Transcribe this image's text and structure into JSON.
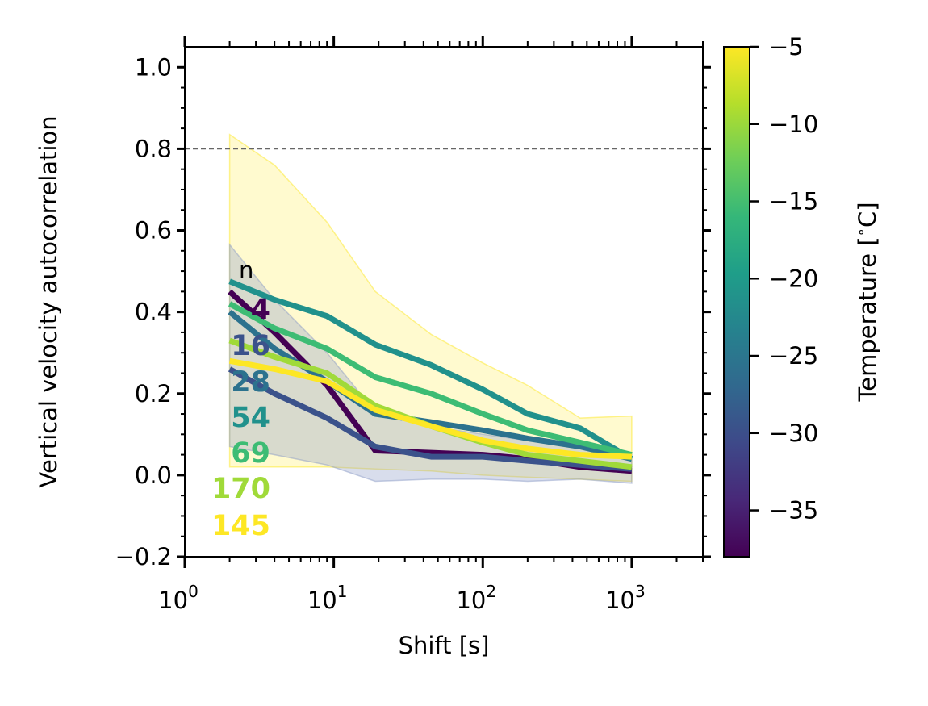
{
  "chart_data": {
    "type": "line",
    "xlabel": "Shift [s]",
    "ylabel": "Vertical velocity autocorrelation",
    "x_scale": "log",
    "xlim": [
      1,
      3000
    ],
    "ylim": [
      -0.2,
      1.05
    ],
    "x_ticks": [
      1,
      10,
      100,
      1000
    ],
    "x_tick_labels": [
      {
        "base": "10",
        "exp": "0"
      },
      {
        "base": "10",
        "exp": "1"
      },
      {
        "base": "10",
        "exp": "2"
      },
      {
        "base": "10",
        "exp": "3"
      }
    ],
    "y_ticks": [
      -0.2,
      0.0,
      0.2,
      0.4,
      0.6,
      0.8,
      1.0
    ],
    "y_tick_labels": [
      "−0.2",
      "0.0",
      "0.2",
      "0.4",
      "0.6",
      "0.8",
      "1.0"
    ],
    "reference_line": {
      "y": 0.8,
      "style": "dashed",
      "color": "#666666"
    },
    "grid": false,
    "count_header": "n",
    "series": [
      {
        "count": "4",
        "color": "#440154",
        "x": [
          2,
          4,
          9,
          19,
          45,
          100,
          200,
          450,
          1000
        ],
        "y": [
          0.45,
          0.35,
          0.22,
          0.06,
          0.055,
          0.05,
          0.04,
          0.02,
          0.01
        ]
      },
      {
        "count": "16",
        "color": "#3b528b",
        "x": [
          2,
          4,
          9,
          19,
          45,
          100,
          200,
          450,
          1000
        ],
        "y": [
          0.26,
          0.2,
          0.14,
          0.07,
          0.045,
          0.045,
          0.035,
          0.025,
          0.015
        ]
      },
      {
        "count": "28",
        "color": "#2c728e",
        "x": [
          2,
          4,
          9,
          19,
          45,
          100,
          200,
          450,
          1000
        ],
        "y": [
          0.4,
          0.31,
          0.23,
          0.15,
          0.13,
          0.11,
          0.09,
          0.07,
          0.04
        ]
      },
      {
        "count": "54",
        "color": "#21918c",
        "x": [
          2,
          4,
          9,
          19,
          45,
          100,
          200,
          450,
          1000
        ],
        "y": [
          0.475,
          0.43,
          0.39,
          0.32,
          0.27,
          0.21,
          0.15,
          0.115,
          0.04
        ]
      },
      {
        "count": "69",
        "color": "#3dbc74",
        "x": [
          2,
          4,
          9,
          19,
          45,
          100,
          200,
          450,
          1000
        ],
        "y": [
          0.42,
          0.36,
          0.31,
          0.24,
          0.2,
          0.15,
          0.11,
          0.08,
          0.05
        ]
      },
      {
        "count": "170",
        "color": "#a0da39",
        "x": [
          2,
          4,
          9,
          19,
          45,
          100,
          200,
          450,
          1000
        ],
        "y": [
          0.33,
          0.29,
          0.25,
          0.17,
          0.12,
          0.08,
          0.05,
          0.035,
          0.02
        ]
      },
      {
        "count": "145",
        "color": "#fde725",
        "x": [
          2,
          4,
          9,
          19,
          45,
          100,
          200,
          450,
          1000
        ],
        "y": [
          0.28,
          0.26,
          0.23,
          0.16,
          0.12,
          0.085,
          0.065,
          0.05,
          0.045
        ]
      }
    ],
    "bands": [
      {
        "color": "#fde725",
        "opacity": 0.22,
        "x": [
          2,
          4,
          9,
          19,
          45,
          100,
          200,
          450,
          1000
        ],
        "upper": [
          0.835,
          0.76,
          0.62,
          0.45,
          0.345,
          0.275,
          0.22,
          0.14,
          0.145
        ],
        "lower": [
          0.02,
          0.02,
          0.02,
          0.015,
          0.01,
          0.0,
          -0.005,
          -0.01,
          -0.015
        ]
      },
      {
        "color": "#8e9ec8",
        "opacity": 0.35,
        "x": [
          2,
          4,
          9,
          19,
          45,
          100,
          200,
          450,
          1000
        ],
        "upper": [
          0.565,
          0.43,
          0.3,
          0.155,
          0.12,
          0.1,
          0.085,
          0.065,
          0.05
        ],
        "lower": [
          0.07,
          0.05,
          0.025,
          -0.015,
          -0.01,
          -0.01,
          -0.015,
          -0.01,
          -0.02
        ]
      }
    ],
    "colorbar": {
      "label": "Temperature [$^\\circ$C]",
      "label_parts": {
        "main": "Temperature [",
        "degree": "∘",
        "unit": "C]"
      },
      "range": [
        -38,
        -5
      ],
      "ticks": [
        -35,
        -30,
        -25,
        -20,
        -15,
        -10,
        -5
      ],
      "tick_labels": [
        "−35",
        "−30",
        "−25",
        "−20",
        "−15",
        "−10",
        "−5"
      ],
      "colormap": "viridis",
      "stops": [
        "#440154",
        "#482878",
        "#3e4989",
        "#31688e",
        "#26828e",
        "#1f9e89",
        "#35b779",
        "#6ece58",
        "#b5de2b",
        "#fde725"
      ]
    }
  }
}
